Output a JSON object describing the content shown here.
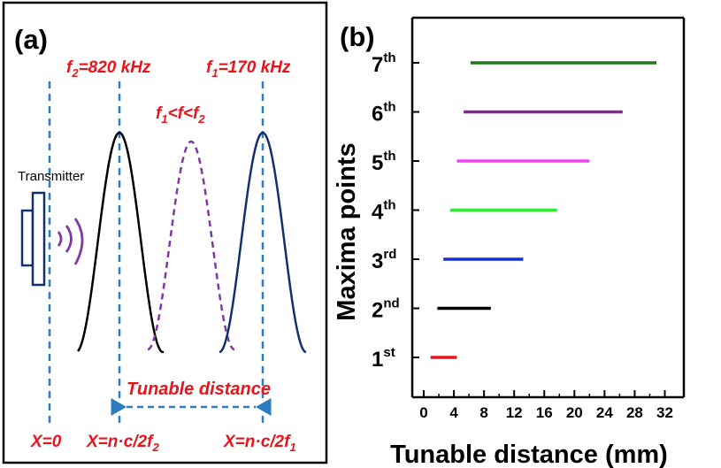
{
  "panel_a": {
    "label": "(a)",
    "f2_label": {
      "main": "f",
      "sub": "2",
      "rest": "=820 kHz"
    },
    "f1_label": {
      "main": "f",
      "sub": "1",
      "rest": "=170 kHz"
    },
    "mid_label": {
      "a": "f",
      "a_sub": "1",
      "b": "<f<f",
      "b_sub": "2"
    },
    "transmitter_label": "Transmitter",
    "tunable_label": "Tunable distance",
    "x0_label": "X=0",
    "xf2_label": {
      "main": "X=n·c/2f",
      "sub": "2"
    },
    "xf1_label": {
      "main": "X=n·c/2f",
      "sub": "1"
    },
    "colors": {
      "dashed_lines": "#2a7dc0",
      "wave_f2": "#000000",
      "wave_mid": "#7f3aa0",
      "wave_f1": "#12306b",
      "annotations": "#e8141b",
      "signal_arcs": "#7f3aa0"
    }
  },
  "panel_b": {
    "label": "(b)",
    "ylabel": "Maxima points",
    "xlabel": "Tunable distance (mm)",
    "x_ticks": [
      "0",
      "4",
      "8",
      "12",
      "16",
      "20",
      "24",
      "28",
      "32"
    ]
  },
  "chart_data": {
    "type": "range-bar",
    "xlabel": "Tunable distance (mm)",
    "ylabel": "Maxima points",
    "xlim": [
      0,
      33
    ],
    "categories": [
      {
        "base": "1",
        "sup": "st"
      },
      {
        "base": "2",
        "sup": "nd"
      },
      {
        "base": "3",
        "sup": "rd"
      },
      {
        "base": "4",
        "sup": "th"
      },
      {
        "base": "5",
        "sup": "th"
      },
      {
        "base": "6",
        "sup": "th"
      },
      {
        "base": "7",
        "sup": "th"
      }
    ],
    "ranges": [
      {
        "start": 0.9,
        "end": 4.4,
        "color": "#e8141b"
      },
      {
        "start": 1.8,
        "end": 8.9,
        "color": "#000000"
      },
      {
        "start": 2.6,
        "end": 13.2,
        "color": "#1530d6"
      },
      {
        "start": 3.5,
        "end": 17.7,
        "color": "#33e633"
      },
      {
        "start": 4.4,
        "end": 22.0,
        "color": "#f040f0"
      },
      {
        "start": 5.3,
        "end": 26.4,
        "color": "#7f2a8c"
      },
      {
        "start": 6.2,
        "end": 30.9,
        "color": "#1f7a1f"
      }
    ]
  }
}
